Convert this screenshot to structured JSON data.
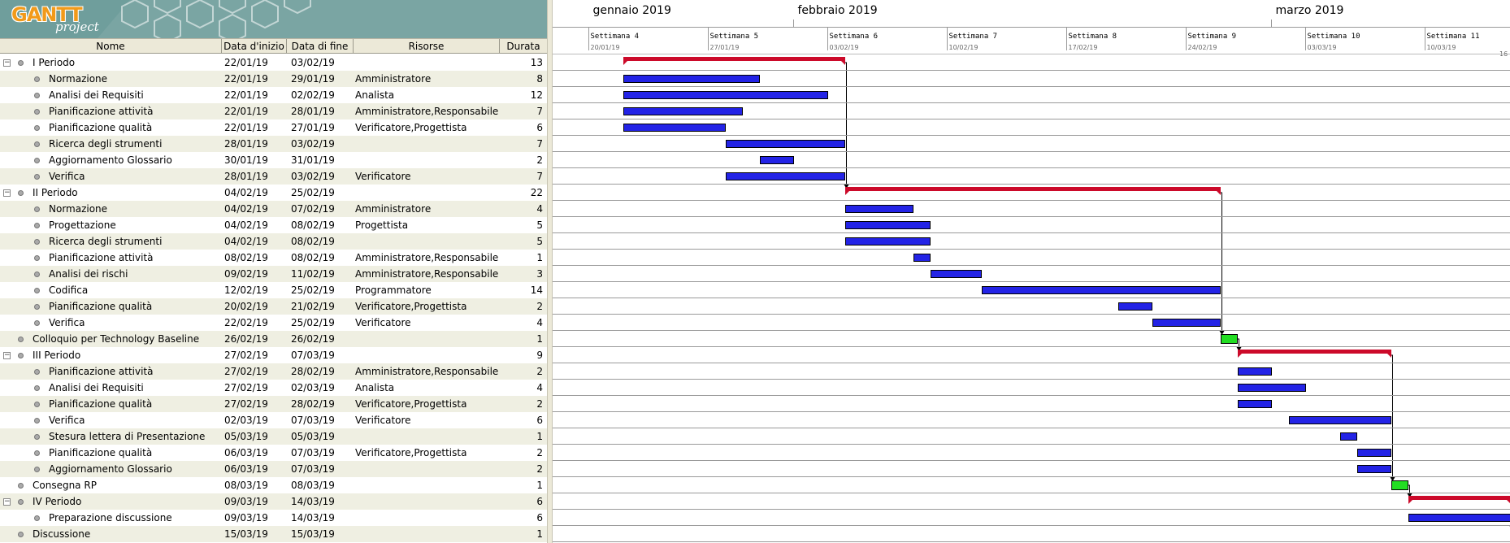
{
  "logo": {
    "main": "GANTT",
    "sub": "project"
  },
  "columns": {
    "name": "Nome",
    "start": "Data d'inizio",
    "end": "Data di fine",
    "resources": "Risorse",
    "duration": "Durata"
  },
  "chart_header": {
    "months": [
      {
        "label": "gennaio 2019",
        "day": 0
      },
      {
        "label": "febbraio 2019",
        "day": 12
      },
      {
        "label": "marzo 2019",
        "day": 40
      }
    ],
    "weeks": [
      {
        "label": "Settimana  4",
        "date": "20/01/19"
      },
      {
        "label": "Settimana  5",
        "date": "27/01/19"
      },
      {
        "label": "Settimana  6",
        "date": "03/02/19"
      },
      {
        "label": "Settimana  7",
        "date": "10/02/19"
      },
      {
        "label": "Settimana  8",
        "date": "17/02/19"
      },
      {
        "label": "Settimana  9",
        "date": "24/02/19"
      },
      {
        "label": "Settimana  10",
        "date": "03/03/19"
      },
      {
        "label": "Settimana  11",
        "date": "10/03/19"
      }
    ],
    "overflow_mark": "16"
  },
  "colors": {
    "task": "#2323e6",
    "summary": "#cc0a2a",
    "milestone": "#22dd22",
    "row_alt": "#efefe2"
  },
  "tasks": [
    {
      "name": "I Periodo",
      "start": "22/01/19",
      "end": "03/02/19",
      "resources": "",
      "duration": "13",
      "level": 0,
      "type": "summary",
      "s": 2,
      "e": 15
    },
    {
      "name": "Normazione",
      "start": "22/01/19",
      "end": "29/01/19",
      "resources": "Amministratore",
      "duration": "8",
      "level": 1,
      "type": "task",
      "s": 2,
      "e": 10
    },
    {
      "name": "Analisi dei Requisiti",
      "start": "22/01/19",
      "end": "02/02/19",
      "resources": "Analista",
      "duration": "12",
      "level": 1,
      "type": "task",
      "s": 2,
      "e": 14
    },
    {
      "name": "Pianificazione attività",
      "start": "22/01/19",
      "end": "28/01/19",
      "resources": "Amministratore,Responsabile",
      "duration": "7",
      "level": 1,
      "type": "task",
      "s": 2,
      "e": 9
    },
    {
      "name": "Pianificazione qualità",
      "start": "22/01/19",
      "end": "27/01/19",
      "resources": "Verificatore,Progettista",
      "duration": "6",
      "level": 1,
      "type": "task",
      "s": 2,
      "e": 8
    },
    {
      "name": "Ricerca degli strumenti",
      "start": "28/01/19",
      "end": "03/02/19",
      "resources": "",
      "duration": "7",
      "level": 1,
      "type": "task",
      "s": 8,
      "e": 15
    },
    {
      "name": "Aggiornamento Glossario",
      "start": "30/01/19",
      "end": "31/01/19",
      "resources": "",
      "duration": "2",
      "level": 1,
      "type": "task",
      "s": 10,
      "e": 12
    },
    {
      "name": "Verifica",
      "start": "28/01/19",
      "end": "03/02/19",
      "resources": "Verificatore",
      "duration": "7",
      "level": 1,
      "type": "task",
      "s": 8,
      "e": 15
    },
    {
      "name": "II Periodo",
      "start": "04/02/19",
      "end": "25/02/19",
      "resources": "",
      "duration": "22",
      "level": 0,
      "type": "summary",
      "s": 15,
      "e": 37
    },
    {
      "name": "Normazione",
      "start": "04/02/19",
      "end": "07/02/19",
      "resources": "Amministratore",
      "duration": "4",
      "level": 1,
      "type": "task",
      "s": 15,
      "e": 19
    },
    {
      "name": "Progettazione",
      "start": "04/02/19",
      "end": "08/02/19",
      "resources": "Progettista",
      "duration": "5",
      "level": 1,
      "type": "task",
      "s": 15,
      "e": 20
    },
    {
      "name": "Ricerca degli strumenti",
      "start": "04/02/19",
      "end": "08/02/19",
      "resources": "",
      "duration": "5",
      "level": 1,
      "type": "task",
      "s": 15,
      "e": 20
    },
    {
      "name": "Pianificazione attività",
      "start": "08/02/19",
      "end": "08/02/19",
      "resources": "Amministratore,Responsabile",
      "duration": "1",
      "level": 1,
      "type": "task",
      "s": 19,
      "e": 20
    },
    {
      "name": "Analisi dei rischi",
      "start": "09/02/19",
      "end": "11/02/19",
      "resources": "Amministratore,Responsabile",
      "duration": "3",
      "level": 1,
      "type": "task",
      "s": 20,
      "e": 23
    },
    {
      "name": "Codifica",
      "start": "12/02/19",
      "end": "25/02/19",
      "resources": "Programmatore",
      "duration": "14",
      "level": 1,
      "type": "task",
      "s": 23,
      "e": 37
    },
    {
      "name": "Pianificazione qualità",
      "start": "20/02/19",
      "end": "21/02/19",
      "resources": "Verificatore,Progettista",
      "duration": "2",
      "level": 1,
      "type": "task",
      "s": 31,
      "e": 33
    },
    {
      "name": "Verifica",
      "start": "22/02/19",
      "end": "25/02/19",
      "resources": "Verificatore",
      "duration": "4",
      "level": 1,
      "type": "task",
      "s": 33,
      "e": 37
    },
    {
      "name": "Colloquio per Technology Baseline",
      "start": "26/02/19",
      "end": "26/02/19",
      "resources": "",
      "duration": "1",
      "level": 0,
      "type": "milestone",
      "s": 37,
      "e": 38
    },
    {
      "name": "III Periodo",
      "start": "27/02/19",
      "end": "07/03/19",
      "resources": "",
      "duration": "9",
      "level": 0,
      "type": "summary",
      "s": 38,
      "e": 47
    },
    {
      "name": "Pianificazione attività",
      "start": "27/02/19",
      "end": "28/02/19",
      "resources": "Amministratore,Responsabile",
      "duration": "2",
      "level": 1,
      "type": "task",
      "s": 38,
      "e": 40
    },
    {
      "name": "Analisi dei Requisiti",
      "start": "27/02/19",
      "end": "02/03/19",
      "resources": "Analista",
      "duration": "4",
      "level": 1,
      "type": "task",
      "s": 38,
      "e": 42
    },
    {
      "name": "Pianificazione qualità",
      "start": "27/02/19",
      "end": "28/02/19",
      "resources": "Verificatore,Progettista",
      "duration": "2",
      "level": 1,
      "type": "task",
      "s": 38,
      "e": 40
    },
    {
      "name": "Verifica",
      "start": "02/03/19",
      "end": "07/03/19",
      "resources": "Verificatore",
      "duration": "6",
      "level": 1,
      "type": "task",
      "s": 41,
      "e": 47
    },
    {
      "name": "Stesura lettera di Presentazione",
      "start": "05/03/19",
      "end": "05/03/19",
      "resources": "",
      "duration": "1",
      "level": 1,
      "type": "task",
      "s": 44,
      "e": 45
    },
    {
      "name": "Pianificazione qualità",
      "start": "06/03/19",
      "end": "07/03/19",
      "resources": "Verificatore,Progettista",
      "duration": "2",
      "level": 1,
      "type": "task",
      "s": 45,
      "e": 47
    },
    {
      "name": "Aggiornamento Glossario",
      "start": "06/03/19",
      "end": "07/03/19",
      "resources": "",
      "duration": "2",
      "level": 1,
      "type": "task",
      "s": 45,
      "e": 47
    },
    {
      "name": "Consegna RP",
      "start": "08/03/19",
      "end": "08/03/19",
      "resources": "",
      "duration": "1",
      "level": 0,
      "type": "milestone",
      "s": 47,
      "e": 48
    },
    {
      "name": "IV Periodo",
      "start": "09/03/19",
      "end": "14/03/19",
      "resources": "",
      "duration": "6",
      "level": 0,
      "type": "summary",
      "s": 48,
      "e": 54
    },
    {
      "name": "Preparazione discussione",
      "start": "09/03/19",
      "end": "14/03/19",
      "resources": "",
      "duration": "6",
      "level": 1,
      "type": "task",
      "s": 48,
      "e": 54
    },
    {
      "name": "Discussione",
      "start": "15/03/19",
      "end": "15/03/19",
      "resources": "",
      "duration": "1",
      "level": 0,
      "type": "milestone",
      "s": 54,
      "e": 55
    }
  ]
}
